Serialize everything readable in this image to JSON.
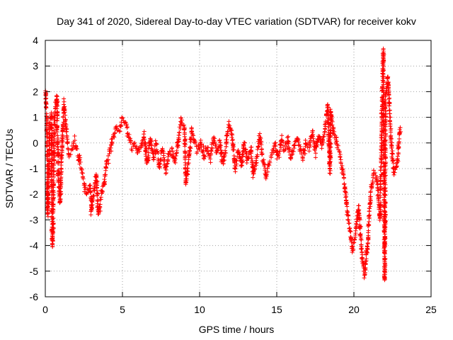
{
  "chart_data": {
    "type": "scatter",
    "title": "Day 341 of 2020, Sidereal Day-to-day VTEC variation (SDTVAR) for receiver kokv",
    "xlabel": "GPS time / hours",
    "ylabel": "SDTVAR / TECUs",
    "xlim": [
      0,
      25
    ],
    "ylim": [
      -6,
      4
    ],
    "xticks": [
      0,
      5,
      10,
      15,
      20,
      25
    ],
    "yticks": [
      -6,
      -5,
      -4,
      -3,
      -2,
      -1,
      0,
      1,
      2,
      3,
      4
    ],
    "grid": true,
    "marker": "plus",
    "color": "#ff0000",
    "series_name": "SDTVAR",
    "trace": [
      [
        0.0,
        2.1
      ],
      [
        0.05,
        1.5
      ],
      [
        0.1,
        1.0
      ],
      [
        0.15,
        -2.8
      ],
      [
        0.2,
        -2.0
      ],
      [
        0.3,
        0.9
      ],
      [
        0.4,
        1.1
      ],
      [
        0.45,
        -4.0
      ],
      [
        0.5,
        -3.5
      ],
      [
        0.6,
        1.0
      ],
      [
        0.75,
        1.8
      ],
      [
        0.85,
        -1.5
      ],
      [
        0.95,
        -2.4
      ],
      [
        1.05,
        -0.7
      ],
      [
        1.2,
        1.5
      ],
      [
        1.35,
        0.6
      ],
      [
        1.5,
        -0.4
      ],
      [
        1.7,
        -0.3
      ],
      [
        1.9,
        0.0
      ],
      [
        2.1,
        -0.4
      ],
      [
        2.3,
        -0.9
      ],
      [
        2.5,
        -1.5
      ],
      [
        2.7,
        -2.0
      ],
      [
        2.9,
        -1.6
      ],
      [
        3.0,
        -2.6
      ],
      [
        3.15,
        -1.9
      ],
      [
        3.3,
        -1.2
      ],
      [
        3.45,
        -2.8
      ],
      [
        3.6,
        -2.2
      ],
      [
        3.8,
        -1.6
      ],
      [
        4.0,
        -0.7
      ],
      [
        4.2,
        -0.3
      ],
      [
        4.4,
        0.2
      ],
      [
        4.6,
        0.6
      ],
      [
        4.8,
        0.5
      ],
      [
        5.0,
        1.0
      ],
      [
        5.2,
        0.8
      ],
      [
        5.4,
        0.3
      ],
      [
        5.6,
        -0.2
      ],
      [
        5.8,
        0.0
      ],
      [
        6.0,
        -0.4
      ],
      [
        6.2,
        -0.1
      ],
      [
        6.4,
        0.3
      ],
      [
        6.6,
        -0.8
      ],
      [
        6.8,
        0.2
      ],
      [
        7.0,
        -0.6
      ],
      [
        7.2,
        -0.1
      ],
      [
        7.4,
        -0.9
      ],
      [
        7.6,
        -0.2
      ],
      [
        7.8,
        -1.1
      ],
      [
        8.0,
        -0.4
      ],
      [
        8.2,
        -0.3
      ],
      [
        8.4,
        -0.8
      ],
      [
        8.6,
        -0.1
      ],
      [
        8.8,
        0.9
      ],
      [
        9.0,
        0.7
      ],
      [
        9.1,
        -1.6
      ],
      [
        9.3,
        -0.6
      ],
      [
        9.5,
        0.5
      ],
      [
        9.7,
        0.0
      ],
      [
        9.9,
        -0.3
      ],
      [
        10.1,
        0.0
      ],
      [
        10.3,
        -0.6
      ],
      [
        10.5,
        -0.2
      ],
      [
        10.7,
        -0.5
      ],
      [
        10.9,
        0.2
      ],
      [
        11.1,
        -0.4
      ],
      [
        11.3,
        0.1
      ],
      [
        11.5,
        -0.8
      ],
      [
        11.7,
        -0.2
      ],
      [
        11.9,
        0.8
      ],
      [
        12.1,
        0.3
      ],
      [
        12.3,
        -1.0
      ],
      [
        12.5,
        -0.3
      ],
      [
        12.7,
        -0.9
      ],
      [
        12.9,
        0.0
      ],
      [
        13.1,
        -0.7
      ],
      [
        13.3,
        -0.2
      ],
      [
        13.5,
        -1.3
      ],
      [
        13.7,
        -0.6
      ],
      [
        13.9,
        0.3
      ],
      [
        14.1,
        -0.6
      ],
      [
        14.3,
        -1.3
      ],
      [
        14.5,
        -0.8
      ],
      [
        14.7,
        -0.4
      ],
      [
        14.9,
        -0.1
      ],
      [
        15.1,
        -0.5
      ],
      [
        15.3,
        0.1
      ],
      [
        15.5,
        -0.3
      ],
      [
        15.7,
        0.2
      ],
      [
        15.9,
        -0.6
      ],
      [
        16.1,
        -0.2
      ],
      [
        16.3,
        0.3
      ],
      [
        16.5,
        -0.2
      ],
      [
        16.7,
        -0.5
      ],
      [
        16.9,
        0.1
      ],
      [
        17.1,
        -0.2
      ],
      [
        17.3,
        0.4
      ],
      [
        17.5,
        -0.3
      ],
      [
        17.7,
        0.3
      ],
      [
        17.9,
        -0.1
      ],
      [
        18.1,
        0.5
      ],
      [
        18.3,
        1.5
      ],
      [
        18.45,
        -1.1
      ],
      [
        18.5,
        1.2
      ],
      [
        18.7,
        0.4
      ],
      [
        18.9,
        -0.1
      ],
      [
        19.1,
        -0.5
      ],
      [
        19.3,
        -1.2
      ],
      [
        19.5,
        -2.2
      ],
      [
        19.7,
        -3.2
      ],
      [
        19.9,
        -4.2
      ],
      [
        20.1,
        -3.6
      ],
      [
        20.3,
        -2.5
      ],
      [
        20.5,
        -4.1
      ],
      [
        20.7,
        -5.1
      ],
      [
        20.9,
        -3.8
      ],
      [
        21.1,
        -1.8
      ],
      [
        21.3,
        -1.2
      ],
      [
        21.5,
        -1.4
      ],
      [
        21.7,
        -3.0
      ],
      [
        21.8,
        0.4
      ],
      [
        21.9,
        3.6
      ],
      [
        22.0,
        -5.4
      ],
      [
        22.05,
        1.7
      ],
      [
        22.2,
        2.6
      ],
      [
        22.4,
        0.2
      ],
      [
        22.6,
        -1.2
      ],
      [
        22.8,
        -0.8
      ],
      [
        23.0,
        0.6
      ]
    ]
  }
}
